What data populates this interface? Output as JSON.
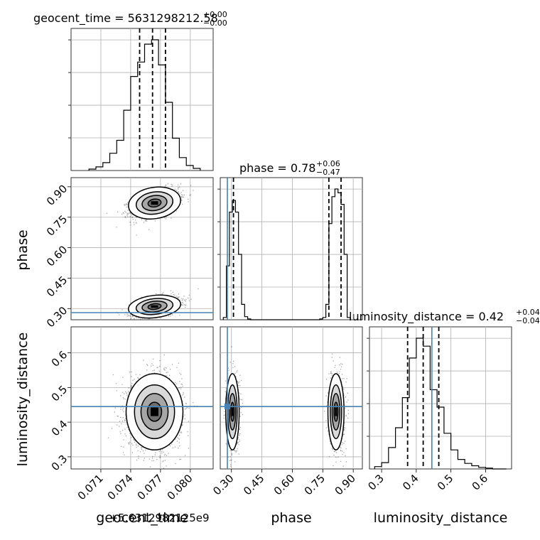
{
  "chart_data": {
    "type": "corner",
    "parameters": [
      "geocent_time",
      "phase",
      "luminosity_distance"
    ],
    "axis_labels": {
      "geocent_time": "geocent_time",
      "phase": "phase",
      "luminosity_distance": "luminosity_distance"
    },
    "offset_label": "+5.6312982125e9",
    "titles": [
      {
        "param": "geocent_time",
        "text": "geocent_time = 5631298212.58",
        "sup": "+0.00",
        "sub": "−0.00"
      },
      {
        "param": "phase",
        "text": "phase = 0.78",
        "sup": "+0.06",
        "sub": "−0.47"
      },
      {
        "param": "luminosity_distance",
        "text": "luminosity_distance = 0.42",
        "sup": "+0.04",
        "sub": "−0.04"
      }
    ],
    "ranges": {
      "geocent_time": [
        0.068,
        0.0823
      ],
      "phase": [
        0.245,
        0.945
      ],
      "luminosity_distance": [
        0.265,
        0.675
      ]
    },
    "ticks": {
      "geocent_time": {
        "values": [
          0.071,
          0.074,
          0.077,
          0.08
        ],
        "labels": [
          "0.071",
          "0.074",
          "0.077",
          "0.080"
        ]
      },
      "phase": {
        "values": [
          0.3,
          0.45,
          0.6,
          0.75,
          0.9
        ],
        "labels": [
          "0.30",
          "0.45",
          "0.60",
          "0.75",
          "0.90"
        ]
      },
      "luminosity_distance": {
        "values": [
          0.3,
          0.4,
          0.5,
          0.6
        ],
        "labels": [
          "0.3",
          "0.4",
          "0.5",
          "0.6"
        ]
      }
    },
    "truths": {
      "geocent_time": null,
      "phase": 0.28,
      "luminosity_distance": 0.445
    },
    "quantiles": {
      "geocent_time": [
        0.0749,
        0.0762,
        0.0775
      ],
      "phase": [
        0.31,
        0.78,
        0.84
      ],
      "luminosity_distance": [
        0.375,
        0.42,
        0.465
      ]
    },
    "histograms": {
      "geocent_time": {
        "edges": [
          0.0698,
          0.0705,
          0.0712,
          0.0719,
          0.0726,
          0.0733,
          0.074,
          0.0747,
          0.0754,
          0.0761,
          0.0768,
          0.0775,
          0.0782,
          0.0789,
          0.0796,
          0.0803,
          0.081
        ],
        "counts": [
          2,
          5,
          11,
          24,
          42,
          84,
          131,
          151,
          176,
          182,
          147,
          95,
          45,
          18,
          7,
          3
        ]
      },
      "phase": {
        "edges": [
          0.26,
          0.275,
          0.29,
          0.305,
          0.32,
          0.335,
          0.35,
          0.365,
          0.38,
          0.395,
          0.735,
          0.75,
          0.765,
          0.78,
          0.795,
          0.81,
          0.825,
          0.84,
          0.855,
          0.87,
          0.885
        ],
        "counts": [
          3,
          70,
          140,
          155,
          140,
          85,
          20,
          4,
          1,
          0,
          1,
          3,
          20,
          125,
          160,
          170,
          165,
          150,
          85,
          3
        ]
      },
      "luminosity_distance": {
        "edges": [
          0.28,
          0.3,
          0.32,
          0.34,
          0.36,
          0.38,
          0.4,
          0.42,
          0.44,
          0.46,
          0.48,
          0.5,
          0.52,
          0.54,
          0.56,
          0.58,
          0.6,
          0.62,
          0.64,
          0.66
        ],
        "counts": [
          3,
          8,
          27,
          52,
          90,
          140,
          165,
          155,
          100,
          78,
          45,
          24,
          12,
          7,
          4,
          2,
          1,
          0,
          0
        ]
      }
    },
    "contour_levels": [
      "0.5",
      "1.0",
      "1.5",
      "2.0"
    ]
  }
}
